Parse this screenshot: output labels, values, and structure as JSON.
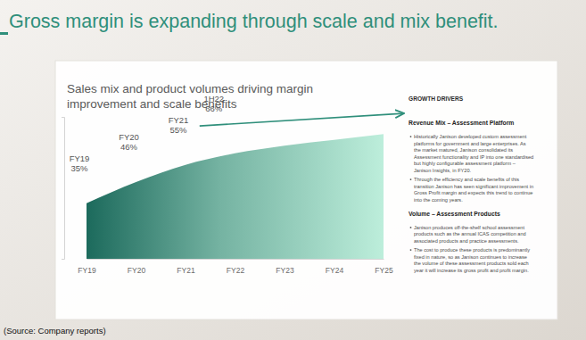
{
  "page": {
    "title": "Gross margin is expanding through scale and mix benefit.",
    "source": "(Source: Company reports)"
  },
  "chart_data": {
    "type": "area",
    "title": "Sales mix and product volumes driving margin improvement and scale benefits",
    "categories": [
      "FY19",
      "FY20",
      "FY21",
      "FY22",
      "FY23",
      "FY24",
      "FY25"
    ],
    "values": [
      35,
      46,
      55,
      61,
      65,
      68,
      71
    ],
    "value_labels": [
      "35%",
      "46%",
      "55%",
      null,
      null,
      null,
      null
    ],
    "data_labels": true,
    "color": "#1c6a5c",
    "ylim": [
      6,
      80
    ],
    "yticks": [],
    "tick_labels": "x",
    "grid": false,
    "annotations": [
      {
        "label": "1H22",
        "value": 66,
        "text": "66%"
      }
    ]
  },
  "growth_drivers": {
    "title": "GROWTH DRIVERS",
    "sections": [
      {
        "heading": "Revenue Mix – Assessment Platform",
        "bullets": [
          [
            "Historically Janison developed custom assessment",
            "platforms for government and large enterprises. As",
            "the market matured, Janison consolidated its",
            "Assessment functionality and IP into one standardised",
            "but highly configurable assessment platform –",
            "Janison Insights, in FY20."
          ],
          [
            "Through the efficiency and scale benefits of this",
            "transition Janison has seen significant improvement in",
            "Gross Profit margin and expects this trend to continue",
            "into the coming years."
          ]
        ]
      },
      {
        "heading": "Volume – Assessment Products",
        "bullets": [
          [
            "Janison produces off-the-shelf school assessment",
            "products such as the annual ICAS competition and",
            "associated products and practice assessments."
          ],
          [
            "The cost to produce these products is predominantly",
            "fixed in nature, so as Janison continues to increase",
            "the volume of these assessment products sold each",
            "year it will increase its gross profit and profit margin."
          ]
        ]
      }
    ]
  }
}
